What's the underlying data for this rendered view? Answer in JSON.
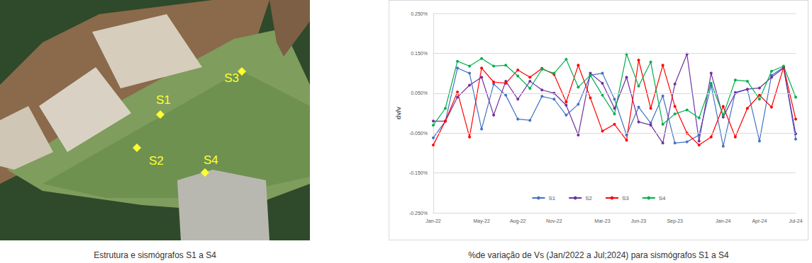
{
  "photo": {
    "labels": [
      "S1",
      "S2",
      "S3",
      "S4"
    ],
    "caption": "Estrutura e sismógrafos S1 a S4"
  },
  "chart_data": {
    "type": "line",
    "title": "%de variação de Vs (Jan/2022 a Jul;2024) para sismógrafos S1 a S4",
    "y_label": "dv/v",
    "categories": [
      "Jan-22",
      null,
      null,
      null,
      "May-22",
      null,
      null,
      "Aug-22",
      null,
      null,
      "Nov-22",
      null,
      null,
      null,
      "Mar-23",
      null,
      null,
      "Jun-23",
      null,
      null,
      "Sep-23",
      null,
      null,
      null,
      "Jan-24",
      null,
      null,
      "Apr-24",
      null,
      null,
      "Jul-24"
    ],
    "series": [
      {
        "name": "S1",
        "color": "#4472c4",
        "values": [
          -0.062,
          -0.02,
          0.113,
          0.1,
          -0.04,
          0.073,
          0.045,
          -0.015,
          -0.018,
          0.042,
          0.035,
          -0.005,
          0.022,
          0.095,
          0.1,
          0.035,
          -0.055,
          0.015,
          -0.025,
          0.043,
          -0.075,
          -0.072,
          -0.055,
          0.07,
          -0.083,
          0.052,
          0.06,
          -0.07,
          0.095,
          0.115,
          -0.065
        ]
      },
      {
        "name": "S2",
        "color": "#7030a0",
        "values": [
          -0.02,
          -0.02,
          0.04,
          0.07,
          0.09,
          -0.005,
          0.08,
          0.035,
          0.08,
          0.058,
          0.05,
          0.02,
          -0.055,
          0.1,
          0.075,
          0.012,
          0.09,
          -0.022,
          -0.03,
          -0.075,
          0.073,
          0.148,
          -0.07,
          0.1,
          -0.01,
          0.05,
          0.06,
          0.063,
          0.09,
          0.113,
          -0.052
        ]
      },
      {
        "name": "S3",
        "color": "#ff0000",
        "values": [
          -0.08,
          -0.02,
          0.053,
          -0.06,
          0.113,
          0.078,
          0.075,
          0.108,
          0.09,
          0.112,
          0.097,
          0.028,
          0.12,
          0.038,
          -0.045,
          -0.028,
          -0.068,
          0.133,
          0.012,
          0.12,
          0.017,
          -0.05,
          -0.08,
          -0.06,
          0.017,
          -0.06,
          0.012,
          0.045,
          0.015,
          0.115,
          -0.015
        ]
      },
      {
        "name": "S4",
        "color": "#00b050",
        "values": [
          -0.03,
          0.012,
          0.13,
          0.118,
          0.137,
          0.118,
          0.12,
          0.093,
          0.062,
          0.11,
          0.1,
          0.135,
          0.065,
          0.095,
          0.045,
          -0.002,
          0.148,
          0.068,
          0.128,
          -0.028,
          -0.002,
          0.008,
          -0.012,
          0.075,
          -0.005,
          0.083,
          0.08,
          0.035,
          0.105,
          0.118,
          0.04
        ]
      }
    ],
    "ylim": [
      -0.25,
      0.25
    ],
    "yticks": [
      {
        "value": -0.25,
        "label": "-0.250%"
      },
      {
        "value": -0.15,
        "label": "-0.150%"
      },
      {
        "value": -0.05,
        "label": "-0.050%"
      },
      {
        "value": 0.05,
        "label": "0.050%"
      },
      {
        "value": 0.15,
        "label": "0.150%"
      },
      {
        "value": 0.25,
        "label": "0.250%"
      }
    ],
    "grid": true,
    "legend": "bottom",
    "marker": "circle"
  }
}
